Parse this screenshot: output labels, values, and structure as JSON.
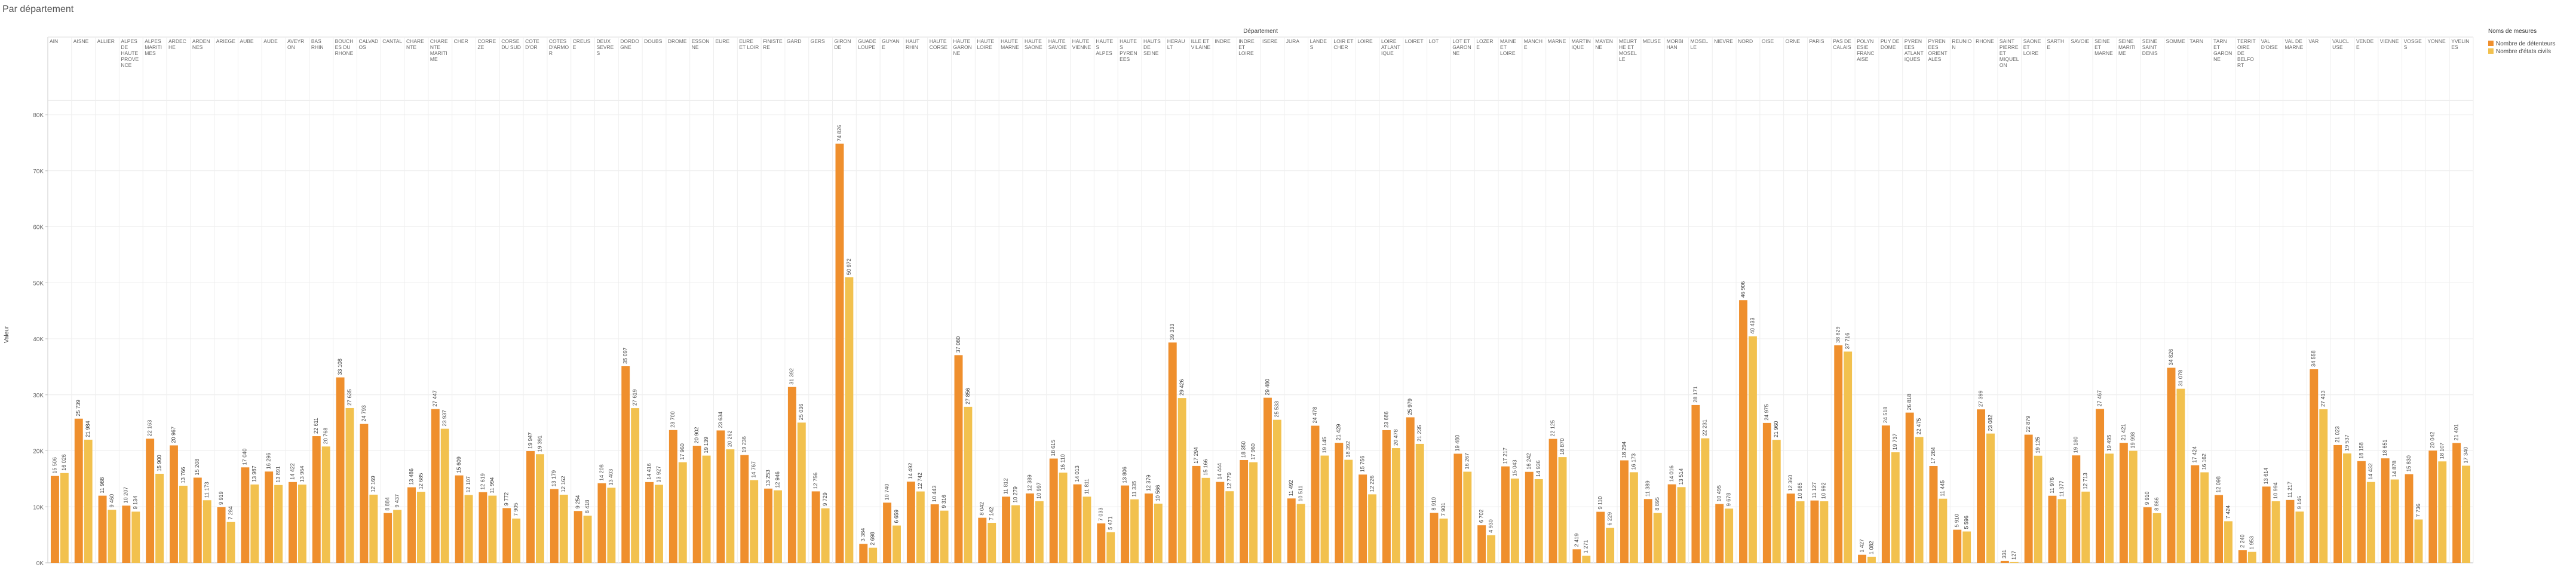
{
  "chart_data": {
    "type": "bar",
    "title": "Par département",
    "x_label": "Département",
    "y_label": "Valeur",
    "legend_title": "Noms de mesures",
    "legend": "right",
    "grid": true,
    "ylim": [
      0,
      81500
    ],
    "yticks": [
      {
        "value": 0,
        "label": "0K"
      },
      {
        "value": 10000,
        "label": "10K"
      },
      {
        "value": 20000,
        "label": "20K"
      },
      {
        "value": 30000,
        "label": "30K"
      },
      {
        "value": 40000,
        "label": "40K"
      },
      {
        "value": 50000,
        "label": "50K"
      },
      {
        "value": 60000,
        "label": "60K"
      },
      {
        "value": 70000,
        "label": "70K"
      },
      {
        "value": 80000,
        "label": "80K"
      }
    ],
    "categories": [
      "AIN",
      "AISNE",
      "ALLIER",
      "ALPES DE HAUTE PROVENCE",
      "ALPES MARITIMES",
      "ARDECHE",
      "ARDENNES",
      "ARIEGE",
      "AUBE",
      "AUDE",
      "AVEYRON",
      "BAS RHIN",
      "BOUCHES DU RHONE",
      "CALVADOS",
      "CANTAL",
      "CHARENTE",
      "CHARENTE MARITIME",
      "CHER",
      "CORREZE",
      "CORSE DU SUD",
      "COTE D'OR",
      "COTES D'ARMOR",
      "CREUSE",
      "DEUX SEVRES",
      "DORDOGNE",
      "DOUBS",
      "DROME",
      "ESSONNE",
      "EURE",
      "EURE ET LOIR",
      "FINISTERE",
      "GARD",
      "GERS",
      "GIRONDE",
      "GUADELOUPE",
      "GUYANE",
      "HAUT RHIN",
      "HAUTE CORSE",
      "HAUTE GARONNE",
      "HAUTE LOIRE",
      "HAUTE MARNE",
      "HAUTE SAONE",
      "HAUTE SAVOIE",
      "HAUTE VIENNE",
      "HAUTES ALPES",
      "HAUTES PYRENEES",
      "HAUTS DE SEINE",
      "HERAULT",
      "ILLE ET VILAINE",
      "INDRE",
      "INDRE ET LOIRE",
      "ISERE",
      "JURA",
      "LANDES",
      "LOIR ET CHER",
      "LOIRE",
      "LOIRE ATLANTIQUE",
      "LOIRET",
      "LOT",
      "LOT ET GARONNE",
      "LOZERE",
      "MAINE ET LOIRE",
      "MANCHE",
      "MARNE",
      "MARTINIQUE",
      "MAYENNE",
      "MEURTHE ET MOSELLE",
      "MEUSE",
      "MORBIHAN",
      "MOSELLE",
      "NIEVRE",
      "NORD",
      "OISE",
      "ORNE",
      "PARIS",
      "PAS DE CALAIS",
      "POLYNESIE FRANCAISE",
      "PUY DE DOME",
      "PYRENEES ATLANTIQUES",
      "PYRENEES ORIENTALES",
      "REUNION",
      "RHONE",
      "SAINT PIERRE ET MIQUELON",
      "SAONE ET LOIRE",
      "SARTHE",
      "SAVOIE",
      "SEINE ET MARNE",
      "SEINE MARITIME",
      "SEINE SAINT DENIS",
      "SOMME",
      "TARN",
      "TARN ET GARONNE",
      "TERRITOIRE DE BELFORT",
      "VAL D'OISE",
      "VAL DE MARNE",
      "VAR",
      "VAUCLUSE",
      "VENDEE",
      "VIENNE",
      "VOSGES",
      "YONNE",
      "YVELINES"
    ],
    "series": [
      {
        "name": "Nombre de détenteurs",
        "color": "#ef8f2d",
        "values": [
          15506,
          25739,
          11988,
          10207,
          22163,
          20967,
          15208,
          9919,
          17040,
          16296,
          14422,
          22611,
          33108,
          24793,
          8884,
          13486,
          27447,
          15609,
          12619,
          9772,
          19947,
          13179,
          9254,
          14208,
          35097,
          14416,
          23700,
          20902,
          23634,
          19236,
          13253,
          31392,
          12756,
          74826,
          3384,
          10740,
          14492,
          10443,
          37080,
          8042,
          11812,
          12389,
          18615,
          14013,
          7033,
          13806,
          12379,
          39333,
          17294,
          14444,
          18350,
          29480,
          11492,
          24478,
          21429,
          15756,
          23686,
          25979,
          8910,
          19480,
          6702,
          17217,
          16242,
          22125,
          2419,
          9110,
          18294,
          11389,
          14016,
          28171,
          10495,
          46906,
          24975,
          12360,
          11127,
          38829,
          1427,
          24518,
          26818,
          17284,
          5910,
          27399,
          331,
          22879,
          11976,
          19180,
          27467,
          21421,
          9910,
          34826,
          17424,
          12098,
          2240,
          13614,
          11217,
          34558,
          21023,
          18158,
          18651,
          15830,
          20042,
          21401
        ],
        "value_labels": [
          "15 506",
          "25 739",
          "11 988",
          "10 207",
          "22 163",
          "20 967",
          "15 208",
          "9 919",
          "17 040",
          "16 296",
          "14 422",
          "22 611",
          "33 108",
          "24 793",
          "8 884",
          "13 486",
          "27 447",
          "15 609",
          "12 619",
          "9 772",
          "19 947",
          "13 179",
          "9 254",
          "14 208",
          "35 097",
          "14 416",
          "23 700",
          "20 902",
          "23 634",
          "19 236",
          "13 253",
          "31 392",
          "12 756",
          "74 826",
          "3 384",
          "10 740",
          "14 492",
          "10 443",
          "37 080",
          "8 042",
          "11 812",
          "12 389",
          "18 615",
          "14 013",
          "7 033",
          "13 806",
          "12 379",
          "39 333",
          "17 294",
          "14 444",
          "18 350",
          "29 480",
          "11 492",
          "24 478",
          "21 429",
          "15 756",
          "23 686",
          "25 979",
          "8 910",
          "19 480",
          "6 702",
          "17 217",
          "16 242",
          "22 125",
          "2 419",
          "9 110",
          "18 294",
          "11 389",
          "14 016",
          "28 171",
          "10 495",
          "46 906",
          "24 975",
          "12 360",
          "11 127",
          "38 829",
          "1 427",
          "24 518",
          "26 818",
          "17 284",
          "5 910",
          "27 399",
          "331",
          "22 879",
          "11 976",
          "19 180",
          "27 467",
          "21 421",
          "9 910",
          "34 826",
          "17 424",
          "12 098",
          "2 240",
          "13 614",
          "11 217",
          "34 558",
          "21 023",
          "18 158",
          "18 651",
          "15 830",
          "20 042",
          "21 401"
        ]
      },
      {
        "name": "Nombre d'états civils",
        "color": "#f2c14e",
        "values": [
          16026,
          21984,
          9460,
          9134,
          15900,
          13766,
          11173,
          7284,
          13987,
          13891,
          13964,
          20768,
          27635,
          12169,
          9437,
          12685,
          23937,
          12107,
          11994,
          7905,
          19391,
          12162,
          8418,
          13403,
          27619,
          13927,
          17960,
          19139,
          20262,
          14767,
          12946,
          25036,
          9729,
          50972,
          2698,
          6659,
          12742,
          9316,
          27856,
          7142,
          10279,
          10997,
          16110,
          11811,
          5471,
          11335,
          10566,
          29426,
          15166,
          12779,
          17960,
          25533,
          10511,
          19145,
          18392,
          12226,
          20478,
          21235,
          7901,
          16267,
          4930,
          15043,
          14936,
          18870,
          1271,
          6229,
          16173,
          8895,
          13514,
          22231,
          9678,
          40433,
          21960,
          10985,
          10992,
          37716,
          1082,
          19737,
          22475,
          11445,
          5596,
          23082,
          127,
          19125,
          11377,
          12713,
          19495,
          19998,
          8866,
          31078,
          16162,
          7424,
          1953,
          10994,
          9146,
          27413,
          19537,
          14432,
          14878,
          7736,
          18107,
          17340
        ],
        "value_labels": [
          "16 026",
          "21 984",
          "9 460",
          "9 134",
          "15 900",
          "13 766",
          "11 173",
          "7 284",
          "13 987",
          "13 891",
          "13 964",
          "20 768",
          "27 635",
          "12 169",
          "9 437",
          "12 685",
          "23 937",
          "12 107",
          "11 994",
          "7 905",
          "19 391",
          "12 162",
          "8 418",
          "13 403",
          "27 619",
          "13 927",
          "17 960",
          "19 139",
          "20 262",
          "14 767",
          "12 946",
          "25 036",
          "9 729",
          "50 972",
          "2 698",
          "6 659",
          "12 742",
          "9 316",
          "27 856",
          "7 142",
          "10 279",
          "10 997",
          "16 110",
          "11 811",
          "5 471",
          "11 335",
          "10 566",
          "29 426",
          "15 166",
          "12 779",
          "17 960",
          "25 533",
          "10 511",
          "19 145",
          "18 392",
          "12 226",
          "20 478",
          "21 235",
          "7 901",
          "16 267",
          "4 930",
          "15 043",
          "14 936",
          "18 870",
          "1 271",
          "6 229",
          "16 173",
          "8 895",
          "13 514",
          "22 231",
          "9 678",
          "40 433",
          "21 960",
          "10 985",
          "10 992",
          "37 716",
          "1 082",
          "19 737",
          "22 475",
          "11 445",
          "5 596",
          "23 082",
          "127",
          "19 125",
          "11 377",
          "12 713",
          "19 495",
          "19 998",
          "8 866",
          "31 078",
          "16 162",
          "7 424",
          "1 953",
          "10 994",
          "9 146",
          "27 413",
          "19 537",
          "14 432",
          "14 878",
          "7 736",
          "18 107",
          "17 340"
        ]
      }
    ]
  }
}
